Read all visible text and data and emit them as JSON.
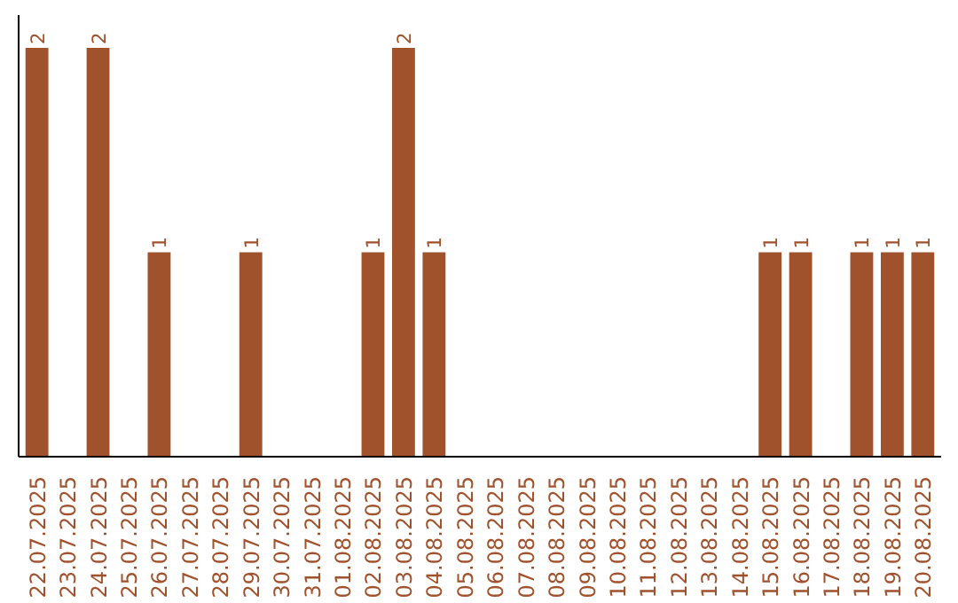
{
  "chart_data": {
    "type": "bar",
    "categories": [
      "22.07.2025",
      "23.07.2025",
      "24.07.2025",
      "25.07.2025",
      "26.07.2025",
      "27.07.2025",
      "28.07.2025",
      "29.07.2025",
      "30.07.2025",
      "31.07.2025",
      "01.08.2025",
      "02.08.2025",
      "03.08.2025",
      "04.08.2025",
      "05.08.2025",
      "06.08.2025",
      "07.08.2025",
      "08.08.2025",
      "09.08.2025",
      "10.08.2025",
      "11.08.2025",
      "12.08.2025",
      "13.08.2025",
      "14.08.2025",
      "15.08.2025",
      "16.08.2025",
      "17.08.2025",
      "18.08.2025",
      "19.08.2025",
      "20.08.2025"
    ],
    "values": [
      2,
      0,
      2,
      0,
      1,
      0,
      0,
      1,
      0,
      0,
      0,
      1,
      2,
      1,
      0,
      0,
      0,
      0,
      0,
      0,
      0,
      0,
      0,
      0,
      1,
      1,
      0,
      1,
      1,
      1
    ],
    "value_labels": [
      "2",
      null,
      "2",
      null,
      "1",
      null,
      null,
      "1",
      null,
      null,
      null,
      "1",
      "2",
      "1",
      null,
      null,
      null,
      null,
      null,
      null,
      null,
      null,
      null,
      null,
      "1",
      "1",
      null,
      "1",
      "1",
      "1"
    ],
    "color": "#a0522d",
    "grid": false,
    "tick_labels": "x"
  }
}
